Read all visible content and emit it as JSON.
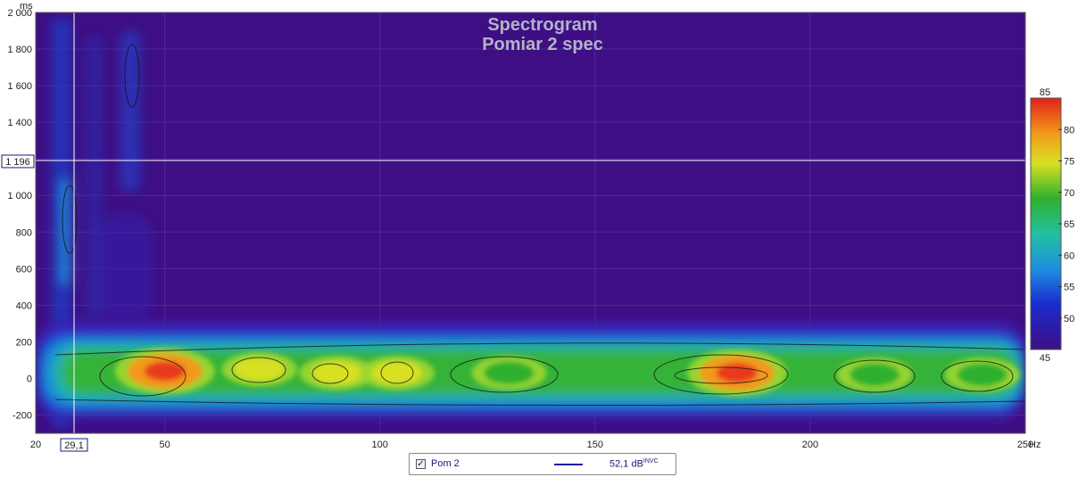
{
  "chart_data": {
    "type": "heatmap",
    "title": "Spectrogram",
    "subtitle": "Pomiar 2 spec",
    "xunit": "Hz",
    "yunit": "ms",
    "xlim": [
      20,
      250
    ],
    "ylim": [
      -300,
      2000
    ],
    "x_ticks": [
      "20",
      "50",
      "100",
      "150",
      "200",
      "250"
    ],
    "x_tick_values": [
      20,
      50,
      100,
      150,
      200,
      250
    ],
    "y_ticks": [
      "2 000",
      "1 800",
      "1 600",
      "1 400",
      "1 200",
      "1 000",
      "800",
      "600",
      "400",
      "200",
      "0",
      "-200"
    ],
    "y_tick_values": [
      2000,
      1800,
      1600,
      1400,
      1200,
      1000,
      800,
      600,
      400,
      200,
      0,
      -200
    ],
    "cursor": {
      "x": 29.1,
      "x_label": "29,1",
      "y": 1196,
      "y_label": "1 196"
    },
    "colorbar": {
      "min": 45,
      "max": 85,
      "ticks": [
        "50",
        "55",
        "60",
        "65",
        "70",
        "75",
        "80"
      ],
      "tick_values": [
        50,
        55,
        60,
        65,
        70,
        75,
        80
      ],
      "min_label": "45",
      "max_label": "85"
    },
    "hotspots": [
      {
        "freq": 50,
        "time": 40,
        "level": 82
      },
      {
        "freq": 72,
        "time": 50,
        "level": 76
      },
      {
        "freq": 90,
        "time": 30,
        "level": 75
      },
      {
        "freq": 104,
        "time": 30,
        "level": 75
      },
      {
        "freq": 130,
        "time": 30,
        "level": 72
      },
      {
        "freq": 183,
        "time": 30,
        "level": 80
      },
      {
        "freq": 215,
        "time": 20,
        "level": 74
      },
      {
        "freq": 240,
        "time": 20,
        "level": 74
      }
    ],
    "colors": {
      "background": "#3e0f84",
      "axis_bg": "#ffffff",
      "cursor": "#ffffff"
    }
  },
  "legend": {
    "checked": true,
    "check_mark": "✓",
    "name": "Pom 2",
    "value": "52,1 dB",
    "value_suffix": "INVC",
    "color": "#1a1aa0"
  }
}
